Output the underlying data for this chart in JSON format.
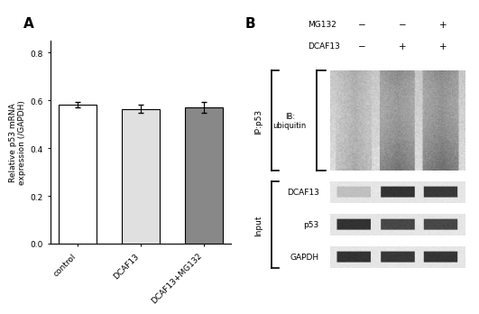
{
  "panel_A": {
    "categories": [
      "control",
      "DCAF13",
      "DCAF13+MG132"
    ],
    "values": [
      0.583,
      0.565,
      0.57
    ],
    "errors": [
      0.012,
      0.018,
      0.022
    ],
    "bar_colors": [
      "#ffffff",
      "#e0e0e0",
      "#888888"
    ],
    "bar_edgecolor": "#000000",
    "ylabel": "Relative p53 mRNA\nexpression (/GAPDH)",
    "ylim": [
      0,
      0.85
    ],
    "yticks": [
      0.0,
      0.2,
      0.4,
      0.6,
      0.8
    ],
    "label": "A"
  },
  "panel_B": {
    "label": "B",
    "mg132_row": [
      "−",
      "−",
      "+"
    ],
    "dcaf13_row": [
      "−",
      "+",
      "+"
    ],
    "ip_label": "IP:p53",
    "ib_label": "IB:\nubiquitin",
    "input_label": "Input",
    "band_labels": [
      "DCAF13",
      "p53",
      "GAPDH"
    ]
  }
}
